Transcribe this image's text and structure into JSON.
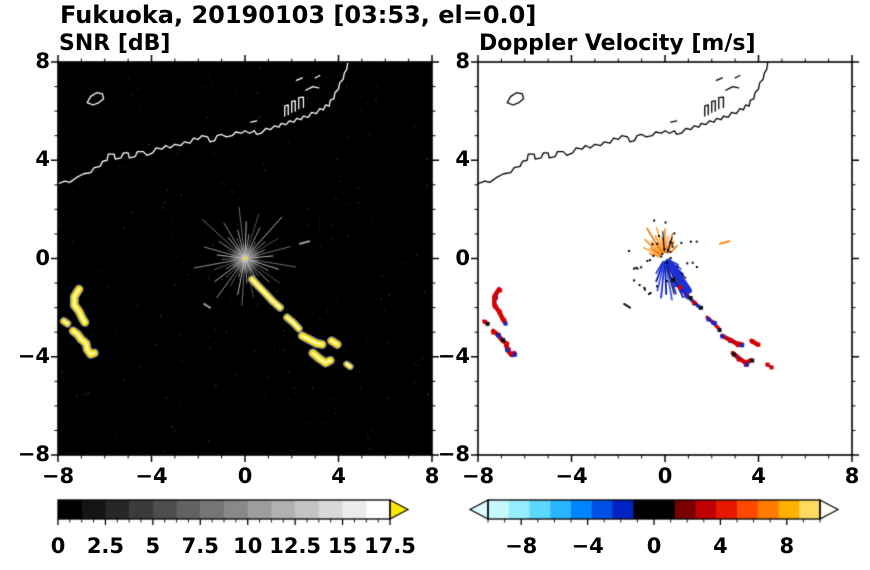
{
  "title": "Fukuoka, 20190103 [03:53, el=0.0]",
  "panels": [
    {
      "id": "snr",
      "title": "SNR [dB]",
      "background": "#000000",
      "coast_color": "#ffffff",
      "xlim": [
        -8,
        8
      ],
      "ylim": [
        -8,
        8
      ],
      "minor_step": 1,
      "xticks": [
        -8,
        -4,
        0,
        4,
        8
      ],
      "xtick_labels": [
        "−8",
        "−4",
        "0",
        "4",
        "8"
      ],
      "yticks": [
        8,
        4,
        0,
        -4,
        -8
      ],
      "ytick_labels": [
        "8",
        "4",
        "0",
        "−4",
        "−8"
      ],
      "colorbar": {
        "type": "gradient",
        "min": 0,
        "max": 17.5,
        "segments_count": 14,
        "start_color": "#000000",
        "end_color": "#ffffff",
        "extend_right": "#ffe600",
        "ticks": [
          0,
          2.5,
          5,
          7.5,
          10,
          12.5,
          15,
          17.5
        ],
        "tick_labels": [
          "0",
          "2.5",
          "5",
          "7.5",
          "10",
          "12.5",
          "15",
          "17.5"
        ],
        "minor_step": 0.625
      }
    },
    {
      "id": "velocity",
      "title": "Doppler Velocity [m/s]",
      "background": "#ffffff",
      "coast_color": "#000000",
      "xlim": [
        -8,
        8
      ],
      "ylim": [
        -8,
        8
      ],
      "minor_step": 1,
      "xticks": [
        -8,
        -4,
        0,
        4,
        8
      ],
      "xtick_labels": [
        "−8",
        "−4",
        "0",
        "4",
        "8"
      ],
      "yticks": [
        8,
        4,
        0,
        -4,
        -8
      ],
      "ytick_labels": [
        "8",
        "4",
        "0",
        "−4",
        "−8"
      ],
      "colorbar": {
        "type": "segments",
        "min": -10,
        "max": 10,
        "segments": [
          "#c8f8ff",
          "#96ecff",
          "#5cd8ff",
          "#28b4ff",
          "#0085ff",
          "#0050e8",
          "#0022c0",
          "#000000",
          "#000000",
          "#7a0000",
          "#c00000",
          "#e81800",
          "#ff4800",
          "#ff7c00",
          "#ffb000",
          "#ffd960"
        ],
        "extend_left": "#dffcff",
        "extend_right": "#fffef2",
        "ticks": [
          -8,
          -4,
          0,
          4,
          8
        ],
        "tick_labels": [
          "−8",
          "−4",
          "0",
          "4",
          "8"
        ],
        "minor_step": 1
      }
    }
  ],
  "chart_data": {
    "type": "heatmap",
    "subtype": "radar-ppi-pair",
    "title": "Fukuoka, 20190103 [03:53, el=0.0]",
    "panel_titles": [
      "SNR [dB]",
      "Doppler Velocity [m/s]"
    ],
    "xlim": [
      -8,
      8
    ],
    "ylim": [
      -8,
      8
    ],
    "xlabel": "",
    "ylabel": "",
    "units": {
      "snr": "dB",
      "velocity": "m/s"
    },
    "radar_center": [
      0,
      0
    ],
    "coastline": [
      [
        [
          -8.0,
          3.05
        ],
        [
          -7.7,
          3.15
        ],
        [
          -7.5,
          3.1
        ],
        [
          -7.2,
          3.3
        ],
        [
          -6.9,
          3.45
        ],
        [
          -6.6,
          3.5
        ],
        [
          -6.45,
          3.7
        ],
        [
          -6.2,
          3.75
        ],
        [
          -6.1,
          3.95
        ],
        [
          -5.9,
          4.0
        ],
        [
          -5.85,
          4.25
        ],
        [
          -5.6,
          4.25
        ],
        [
          -5.55,
          4.05
        ],
        [
          -5.3,
          4.1
        ],
        [
          -5.2,
          4.3
        ],
        [
          -5.0,
          4.3
        ],
        [
          -4.95,
          4.1
        ],
        [
          -4.7,
          4.15
        ],
        [
          -4.6,
          4.35
        ],
        [
          -4.35,
          4.35
        ],
        [
          -4.2,
          4.2
        ],
        [
          -3.95,
          4.3
        ],
        [
          -3.8,
          4.5
        ],
        [
          -3.55,
          4.45
        ],
        [
          -3.4,
          4.6
        ],
        [
          -3.2,
          4.5
        ],
        [
          -3.0,
          4.65
        ],
        [
          -2.75,
          4.6
        ],
        [
          -2.6,
          4.75
        ],
        [
          -2.35,
          4.7
        ],
        [
          -2.2,
          4.9
        ],
        [
          -2.0,
          4.85
        ],
        [
          -1.85,
          5.0
        ],
        [
          -1.6,
          4.95
        ],
        [
          -1.5,
          4.75
        ],
        [
          -1.3,
          4.8
        ],
        [
          -1.2,
          5.0
        ],
        [
          -1.0,
          5.05
        ],
        [
          -0.8,
          4.95
        ],
        [
          -0.55,
          5.0
        ],
        [
          -0.4,
          5.15
        ],
        [
          -0.15,
          5.1
        ],
        [
          0.0,
          5.2
        ],
        [
          0.2,
          5.1
        ],
        [
          0.4,
          5.2
        ],
        [
          0.5,
          5.05
        ],
        [
          0.7,
          5.1
        ],
        [
          0.9,
          5.3
        ],
        [
          1.1,
          5.25
        ],
        [
          1.25,
          5.4
        ],
        [
          1.45,
          5.35
        ],
        [
          1.55,
          5.5
        ],
        [
          1.75,
          5.45
        ],
        [
          1.9,
          5.6
        ],
        [
          2.1,
          5.55
        ],
        [
          2.2,
          5.7
        ],
        [
          2.4,
          5.65
        ],
        [
          2.5,
          5.8
        ],
        [
          2.7,
          5.75
        ],
        [
          2.85,
          5.95
        ],
        [
          3.05,
          5.9
        ],
        [
          3.2,
          6.1
        ],
        [
          3.35,
          6.05
        ],
        [
          3.45,
          6.25
        ],
        [
          3.6,
          6.2
        ],
        [
          3.65,
          6.45
        ],
        [
          3.8,
          6.5
        ],
        [
          3.85,
          6.75
        ],
        [
          4.0,
          6.9
        ],
        [
          4.05,
          7.15
        ],
        [
          4.2,
          7.3
        ],
        [
          4.25,
          7.55
        ],
        [
          4.35,
          7.7
        ],
        [
          4.4,
          8.0
        ]
      ],
      [
        [
          -6.75,
          6.35
        ],
        [
          -6.6,
          6.6
        ],
        [
          -6.35,
          6.75
        ],
        [
          -6.1,
          6.7
        ],
        [
          -6.05,
          6.5
        ],
        [
          -6.25,
          6.35
        ],
        [
          -6.5,
          6.25
        ],
        [
          -6.75,
          6.35
        ]
      ],
      [
        [
          1.7,
          5.8
        ],
        [
          1.7,
          6.2
        ],
        [
          1.85,
          6.25
        ],
        [
          1.85,
          5.85
        ]
      ],
      [
        [
          2.0,
          5.95
        ],
        [
          2.0,
          6.4
        ],
        [
          2.15,
          6.42
        ],
        [
          2.15,
          6.0
        ]
      ],
      [
        [
          2.3,
          6.1
        ],
        [
          2.3,
          6.55
        ],
        [
          2.5,
          6.57
        ],
        [
          2.5,
          6.15
        ]
      ],
      [
        [
          2.6,
          6.85
        ],
        [
          2.9,
          7.0
        ],
        [
          3.15,
          6.95
        ]
      ],
      [
        [
          2.2,
          7.25
        ],
        [
          2.45,
          7.35
        ]
      ],
      [
        [
          3.0,
          7.35
        ],
        [
          3.2,
          7.45
        ]
      ],
      [
        [
          0.25,
          5.55
        ],
        [
          0.5,
          5.6
        ]
      ]
    ],
    "echo_paths": [
      {
        "id": "west-upper",
        "vel": "red",
        "w": 5,
        "points": [
          [
            -7.1,
            -1.25
          ],
          [
            -7.3,
            -1.55
          ],
          [
            -7.3,
            -1.9
          ],
          [
            -7.1,
            -2.15
          ],
          [
            -6.95,
            -2.45
          ],
          [
            -6.85,
            -2.6
          ]
        ]
      },
      {
        "id": "west-lower",
        "vel": "red",
        "w": 5,
        "points": [
          [
            -7.35,
            -2.95
          ],
          [
            -7.15,
            -3.1
          ],
          [
            -7.0,
            -3.3
          ],
          [
            -6.8,
            -3.45
          ],
          [
            -6.75,
            -3.7
          ],
          [
            -6.6,
            -3.9
          ],
          [
            -6.45,
            -3.85
          ]
        ]
      },
      {
        "id": "west-speck",
        "vel": "red",
        "w": 4,
        "points": [
          [
            -7.75,
            -2.55
          ],
          [
            -7.6,
            -2.65
          ]
        ]
      },
      {
        "id": "diag-1",
        "vel": "blue",
        "w": 4,
        "points": [
          [
            0.3,
            -0.85
          ],
          [
            0.6,
            -1.15
          ],
          [
            0.9,
            -1.45
          ],
          [
            1.2,
            -1.75
          ],
          [
            1.5,
            -2.0
          ]
        ]
      },
      {
        "id": "diag-2",
        "vel": "red",
        "w": 4,
        "points": [
          [
            1.8,
            -2.4
          ],
          [
            2.05,
            -2.6
          ],
          [
            2.3,
            -2.85
          ]
        ]
      },
      {
        "id": "diag-3",
        "vel": "red",
        "w": 5,
        "points": [
          [
            2.45,
            -3.15
          ],
          [
            2.75,
            -3.3
          ],
          [
            3.05,
            -3.45
          ],
          [
            3.3,
            -3.5
          ]
        ]
      },
      {
        "id": "diag-4",
        "vel": "red",
        "w": 5,
        "points": [
          [
            2.9,
            -3.85
          ],
          [
            3.15,
            -4.05
          ],
          [
            3.45,
            -4.25
          ],
          [
            3.65,
            -4.15
          ]
        ]
      },
      {
        "id": "east-blob",
        "vel": "red",
        "w": 5,
        "points": [
          [
            3.7,
            -3.35
          ],
          [
            3.95,
            -3.5
          ]
        ]
      },
      {
        "id": "east-speck",
        "vel": "red",
        "w": 3,
        "points": [
          [
            4.35,
            -4.3
          ],
          [
            4.5,
            -4.4
          ]
        ]
      }
    ],
    "isolated_dashes": [
      {
        "points": [
          [
            -1.75,
            -1.85
          ],
          [
            -1.5,
            -2.0
          ]
        ],
        "snr_color": "#9a9a9a",
        "vel_color": "#111111"
      },
      {
        "points": [
          [
            2.35,
            0.6
          ],
          [
            2.75,
            0.7
          ]
        ],
        "snr_color": "#9a9a9a",
        "vel_color": "#ff8c1a"
      }
    ],
    "snr": {
      "spokes": [
        [
          5,
          0.12,
          1.2
        ],
        [
          14,
          0.12,
          2.0
        ],
        [
          22,
          0.12,
          0.9
        ],
        [
          30,
          0.12,
          1.6
        ],
        [
          38,
          0.12,
          1.1
        ],
        [
          47,
          0.12,
          2.3
        ],
        [
          55,
          0.12,
          0.8
        ],
        [
          63,
          0.12,
          1.4
        ],
        [
          72,
          0.12,
          1.9
        ],
        [
          80,
          0.12,
          1.0
        ],
        [
          88,
          0.12,
          1.5
        ],
        [
          97,
          0.12,
          2.1
        ],
        [
          105,
          0.12,
          1.2
        ],
        [
          113,
          0.12,
          0.9
        ],
        [
          122,
          0.12,
          1.7
        ],
        [
          130,
          0.12,
          1.1
        ],
        [
          139,
          0.12,
          2.4
        ],
        [
          148,
          0.12,
          1.3
        ],
        [
          156,
          0.12,
          0.8
        ],
        [
          165,
          0.12,
          1.8
        ],
        [
          173,
          0.12,
          1.2
        ],
        [
          182,
          0.12,
          1.0
        ],
        [
          190,
          0.12,
          2.2
        ],
        [
          199,
          0.12,
          1.4
        ],
        [
          207,
          0.12,
          0.9
        ],
        [
          216,
          0.12,
          1.6
        ],
        [
          224,
          0.12,
          1.1
        ],
        [
          233,
          0.12,
          2.0
        ],
        [
          241,
          0.12,
          1.3
        ],
        [
          250,
          0.12,
          0.8
        ],
        [
          258,
          0.12,
          1.5
        ],
        [
          266,
          0.12,
          1.9
        ],
        [
          275,
          0.12,
          1.0
        ],
        [
          283,
          0.12,
          1.6
        ],
        [
          292,
          0.12,
          1.2
        ],
        [
          300,
          0.12,
          2.1
        ],
        [
          309,
          0.12,
          0.9
        ],
        [
          317,
          0.12,
          1.4
        ],
        [
          326,
          0.12,
          1.8
        ],
        [
          334,
          0.12,
          1.1
        ],
        [
          343,
          0.12,
          1.5
        ],
        [
          351,
          0.12,
          2.2
        ]
      ],
      "spoke_shades": [
        "#b4b4b4",
        "#6e6e6e",
        "#969696",
        "#525252",
        "#8a8a8a"
      ],
      "noise_dot_count": 300,
      "center_dot_color": "#ffe600",
      "echo_color": "#ffe600",
      "echo_halo": "#8f8f8f",
      "echo_core": "#fffbdc"
    },
    "velocity": {
      "fan_orange": [
        [
          62,
          0.25,
          0.8
        ],
        [
          72,
          0.3,
          1.05
        ],
        [
          82,
          0.25,
          0.9
        ],
        [
          90,
          0.3,
          1.2
        ],
        [
          98,
          0.25,
          0.85
        ],
        [
          106,
          0.3,
          1.3
        ],
        [
          114,
          0.25,
          1.0
        ],
        [
          122,
          0.3,
          1.45
        ],
        [
          130,
          0.25,
          0.9
        ],
        [
          138,
          0.3,
          1.15
        ],
        [
          146,
          0.25,
          0.75
        ],
        [
          154,
          0.3,
          1.0
        ],
        [
          163,
          0.25,
          0.7
        ],
        [
          45,
          0.4,
          0.75
        ]
      ],
      "fan_blue": [
        [
          238,
          0.15,
          0.7
        ],
        [
          248,
          0.2,
          1.0
        ],
        [
          256,
          0.15,
          1.35
        ],
        [
          264,
          0.2,
          1.6
        ],
        [
          272,
          0.15,
          1.45
        ],
        [
          280,
          0.2,
          1.7
        ],
        [
          288,
          0.15,
          1.5
        ],
        [
          296,
          0.2,
          1.75
        ],
        [
          304,
          0.15,
          1.4
        ],
        [
          312,
          0.2,
          1.2
        ],
        [
          320,
          0.25,
          1.0
        ],
        [
          328,
          0.25,
          0.8
        ],
        [
          336,
          0.3,
          0.6
        ]
      ],
      "fan_black": [
        [
          300,
          0.2,
          1.9
        ],
        [
          285,
          0.3,
          1.5
        ],
        [
          318,
          0.3,
          1.2
        ],
        [
          95,
          0.3,
          1.1
        ],
        [
          70,
          0.25,
          0.9
        ]
      ],
      "blue_core": [
        [
          0.15,
          -0.15
        ],
        [
          0.45,
          -0.55
        ],
        [
          0.75,
          -0.95
        ],
        [
          1.0,
          -1.3
        ]
      ],
      "blue_core_color": "#1c2fd8",
      "orange_shades": [
        "#ff8c1a",
        "#f27300",
        "#ffa640"
      ],
      "blue_shades": [
        "#2232dc",
        "#0a18a6",
        "#3c55ff"
      ],
      "black_speck_count": 40,
      "dot_red": "#d40000",
      "dot_blue": "#1626cc"
    }
  }
}
